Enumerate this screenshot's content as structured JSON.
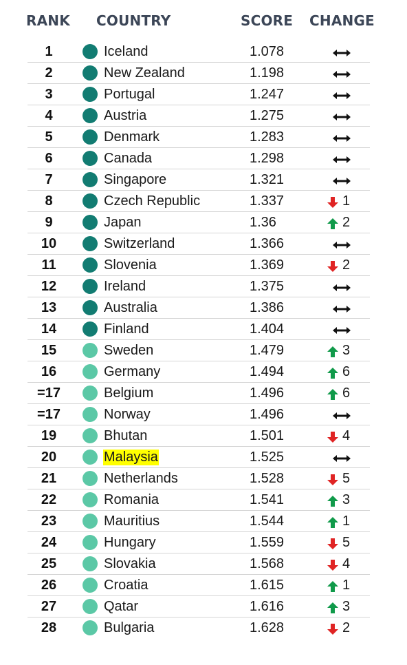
{
  "header": {
    "rank": "RANK",
    "country": "COUNTRY",
    "score": "SCORE",
    "change": "CHANGE"
  },
  "colors": {
    "dark_dot": "#127c72",
    "light_dot": "#5bc8a6",
    "up": "#109a4a",
    "down": "#e02424",
    "same": "#111111",
    "highlight": "#ffff00"
  },
  "rows": [
    {
      "rank": "1",
      "country": "Iceland",
      "score": "1.078",
      "tier": "dark",
      "change": "same",
      "delta": ""
    },
    {
      "rank": "2",
      "country": "New Zealand",
      "score": "1.198",
      "tier": "dark",
      "change": "same",
      "delta": ""
    },
    {
      "rank": "3",
      "country": "Portugal",
      "score": "1.247",
      "tier": "dark",
      "change": "same",
      "delta": ""
    },
    {
      "rank": "4",
      "country": "Austria",
      "score": "1.275",
      "tier": "dark",
      "change": "same",
      "delta": ""
    },
    {
      "rank": "5",
      "country": "Denmark",
      "score": "1.283",
      "tier": "dark",
      "change": "same",
      "delta": ""
    },
    {
      "rank": "6",
      "country": "Canada",
      "score": "1.298",
      "tier": "dark",
      "change": "same",
      "delta": ""
    },
    {
      "rank": "7",
      "country": "Singapore",
      "score": "1.321",
      "tier": "dark",
      "change": "same",
      "delta": ""
    },
    {
      "rank": "8",
      "country": "Czech Republic",
      "score": "1.337",
      "tier": "dark",
      "change": "down",
      "delta": "1"
    },
    {
      "rank": "9",
      "country": "Japan",
      "score": "1.36",
      "tier": "dark",
      "change": "up",
      "delta": "2"
    },
    {
      "rank": "10",
      "country": "Switzerland",
      "score": "1.366",
      "tier": "dark",
      "change": "same",
      "delta": ""
    },
    {
      "rank": "11",
      "country": "Slovenia",
      "score": "1.369",
      "tier": "dark",
      "change": "down",
      "delta": "2"
    },
    {
      "rank": "12",
      "country": "Ireland",
      "score": "1.375",
      "tier": "dark",
      "change": "same",
      "delta": ""
    },
    {
      "rank": "13",
      "country": "Australia",
      "score": "1.386",
      "tier": "dark",
      "change": "same",
      "delta": ""
    },
    {
      "rank": "14",
      "country": "Finland",
      "score": "1.404",
      "tier": "dark",
      "change": "same",
      "delta": ""
    },
    {
      "rank": "15",
      "country": "Sweden",
      "score": "1.479",
      "tier": "light",
      "change": "up",
      "delta": "3"
    },
    {
      "rank": "16",
      "country": "Germany",
      "score": "1.494",
      "tier": "light",
      "change": "up",
      "delta": "6"
    },
    {
      "rank": "=17",
      "country": "Belgium",
      "score": "1.496",
      "tier": "light",
      "change": "up",
      "delta": "6"
    },
    {
      "rank": "=17",
      "country": "Norway",
      "score": "1.496",
      "tier": "light",
      "change": "same",
      "delta": ""
    },
    {
      "rank": "19",
      "country": "Bhutan",
      "score": "1.501",
      "tier": "light",
      "change": "down",
      "delta": "4"
    },
    {
      "rank": "20",
      "country": "Malaysia",
      "score": "1.525",
      "tier": "light",
      "change": "same",
      "delta": "",
      "highlight": true
    },
    {
      "rank": "21",
      "country": "Netherlands",
      "score": "1.528",
      "tier": "light",
      "change": "down",
      "delta": "5"
    },
    {
      "rank": "22",
      "country": "Romania",
      "score": "1.541",
      "tier": "light",
      "change": "up",
      "delta": "3"
    },
    {
      "rank": "23",
      "country": "Mauritius",
      "score": "1.544",
      "tier": "light",
      "change": "up",
      "delta": "1"
    },
    {
      "rank": "24",
      "country": "Hungary",
      "score": "1.559",
      "tier": "light",
      "change": "down",
      "delta": "5"
    },
    {
      "rank": "25",
      "country": "Slovakia",
      "score": "1.568",
      "tier": "light",
      "change": "down",
      "delta": "4"
    },
    {
      "rank": "26",
      "country": "Croatia",
      "score": "1.615",
      "tier": "light",
      "change": "up",
      "delta": "1"
    },
    {
      "rank": "27",
      "country": "Qatar",
      "score": "1.616",
      "tier": "light",
      "change": "up",
      "delta": "3"
    },
    {
      "rank": "28",
      "country": "Bulgaria",
      "score": "1.628",
      "tier": "light",
      "change": "down",
      "delta": "2"
    }
  ]
}
